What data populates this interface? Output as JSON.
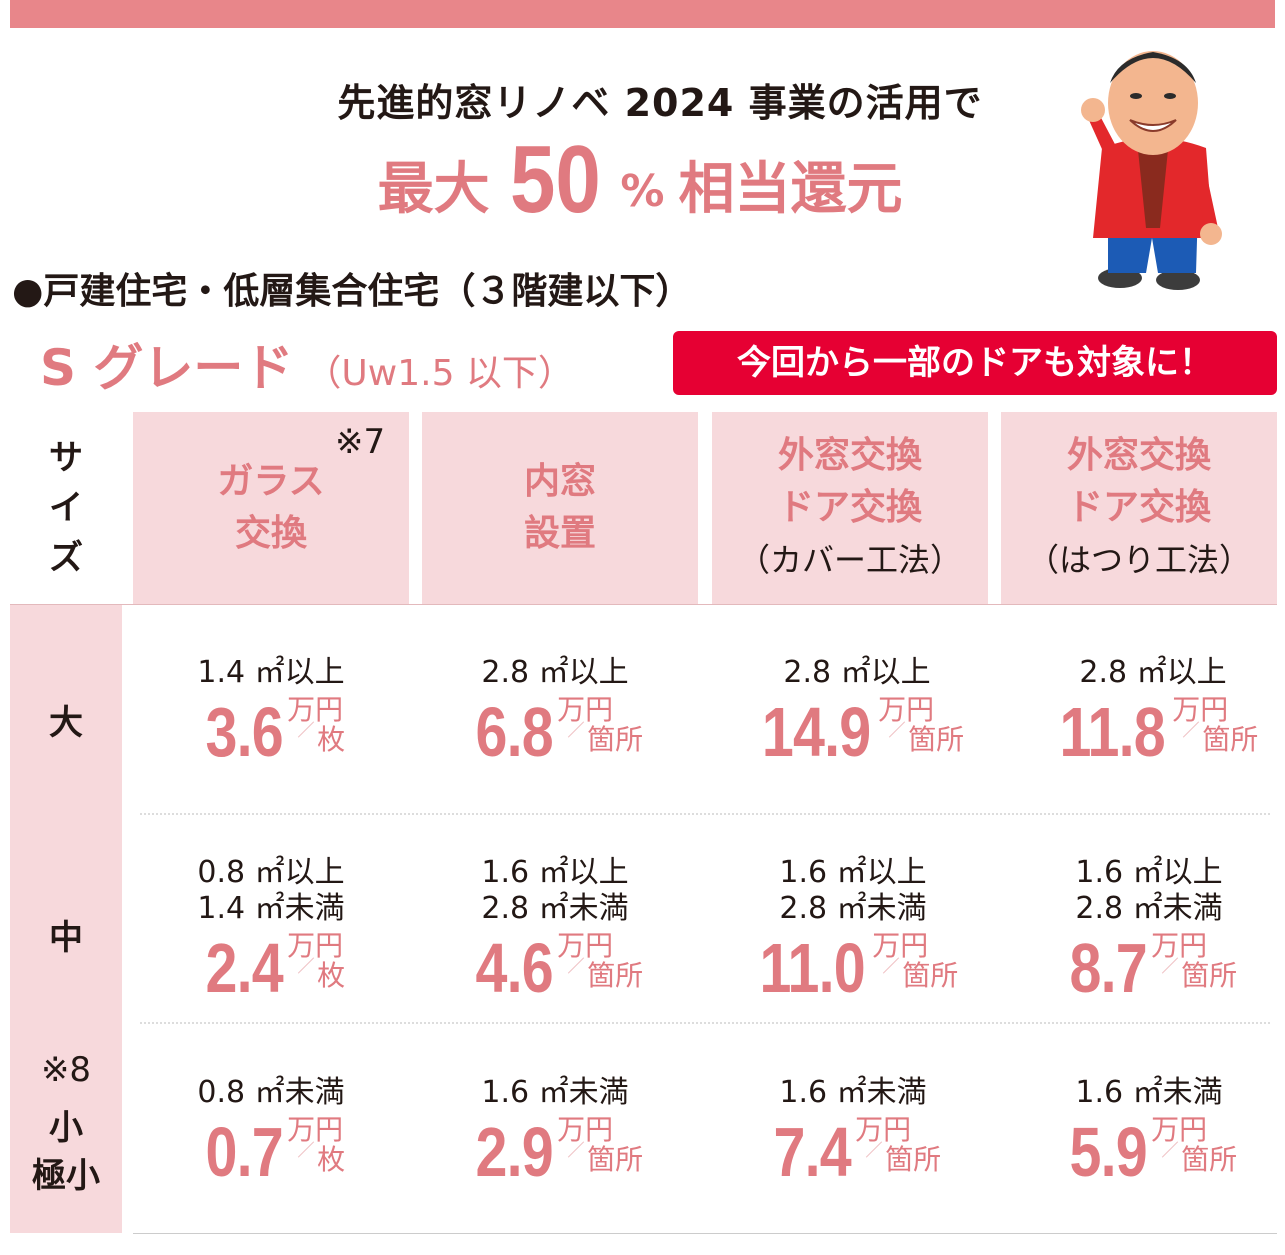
{
  "headline": {
    "line1": "先進的窓リノベ 2024 事業の活用で",
    "line2_pre": "最大",
    "line2_big": "50",
    "line2_pct": "%",
    "line2_post": "相当還元"
  },
  "section": {
    "bullet": "●戸建住宅・低層集合住宅（３階建以下）",
    "grade": "S グレード",
    "grade_sub": "（Uw1.5 以下）",
    "badge": "今回から一部のドアも対象に！"
  },
  "table": {
    "size_header": [
      "サ",
      "イ",
      "ズ"
    ],
    "note7": "※7",
    "columns": [
      {
        "lines": [
          "ガラス",
          "交換"
        ],
        "paren": ""
      },
      {
        "lines": [
          "内窓",
          "設置"
        ],
        "paren": ""
      },
      {
        "lines": [
          "外窓交換",
          "ドア交換"
        ],
        "paren": "（カバー工法）"
      },
      {
        "lines": [
          "外窓交換",
          "ドア交換"
        ],
        "paren": "（はつり工法）"
      }
    ],
    "rows": [
      {
        "label": "大",
        "note": "",
        "label2": "",
        "cells": [
          {
            "cond": [
              "1.4 ㎡以上"
            ],
            "value": "3.6",
            "unit": "万円",
            "per": "枚"
          },
          {
            "cond": [
              "2.8 ㎡以上"
            ],
            "value": "6.8",
            "unit": "万円",
            "per": "箇所"
          },
          {
            "cond": [
              "2.8 ㎡以上"
            ],
            "value": "14.9",
            "unit": "万円",
            "per": "箇所"
          },
          {
            "cond": [
              "2.8 ㎡以上"
            ],
            "value": "11.8",
            "unit": "万円",
            "per": "箇所"
          }
        ]
      },
      {
        "label": "中",
        "note": "",
        "label2": "",
        "cells": [
          {
            "cond": [
              "0.8 ㎡以上",
              "1.4 ㎡未満"
            ],
            "value": "2.4",
            "unit": "万円",
            "per": "枚"
          },
          {
            "cond": [
              "1.6 ㎡以上",
              "2.8 ㎡未満"
            ],
            "value": "4.6",
            "unit": "万円",
            "per": "箇所"
          },
          {
            "cond": [
              "1.6 ㎡以上",
              "2.8 ㎡未満"
            ],
            "value": "11.0",
            "unit": "万円",
            "per": "箇所"
          },
          {
            "cond": [
              "1.6 ㎡以上",
              "2.8 ㎡未満"
            ],
            "value": "8.7",
            "unit": "万円",
            "per": "箇所"
          }
        ]
      },
      {
        "label": "小",
        "note": "※8",
        "label2": "極小",
        "cells": [
          {
            "cond": [
              "0.8 ㎡未満"
            ],
            "value": "0.7",
            "unit": "万円",
            "per": "枚"
          },
          {
            "cond": [
              "1.6 ㎡未満"
            ],
            "value": "2.9",
            "unit": "万円",
            "per": "箇所"
          },
          {
            "cond": [
              "1.6 ㎡未満"
            ],
            "value": "7.4",
            "unit": "万円",
            "per": "箇所"
          },
          {
            "cond": [
              "1.6 ㎡未満"
            ],
            "value": "5.9",
            "unit": "万円",
            "per": "箇所"
          }
        ]
      }
    ]
  },
  "colors": {
    "accent": "#e07a80",
    "pink_bg": "#f7d9dc",
    "badge_red": "#e60033",
    "top_bar": "#e8868a"
  }
}
